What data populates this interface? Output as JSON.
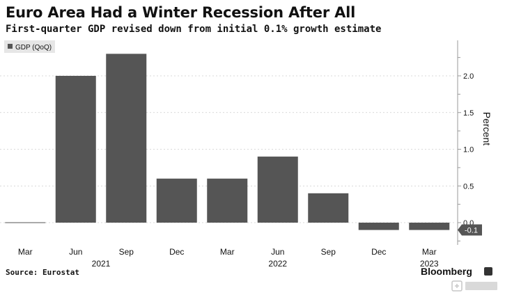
{
  "title": "Euro Area Had a Winter Recession After All",
  "subtitle": "First-quarter GDP revised down from initial 0.1% growth estimate",
  "source": "Source: Eurostat",
  "brand": "Bloomberg",
  "colors": {
    "bar": "#555555",
    "axis": "#999999",
    "grid": "#cccccc",
    "text": "#111111"
  },
  "chart_data": {
    "type": "bar",
    "categories": [
      "Mar",
      "Jun",
      "Sep",
      "Dec",
      "Mar",
      "Jun",
      "Sep",
      "Dec",
      "Mar"
    ],
    "year_labels": [
      {
        "label": "2021",
        "category_index": 1.5
      },
      {
        "label": "2022",
        "category_index": 5.0
      },
      {
        "label": "2023",
        "category_index": 8.0
      }
    ],
    "series": [
      {
        "name": "GDP (QoQ)",
        "values": [
          0.0,
          2.0,
          2.3,
          0.6,
          0.6,
          0.9,
          0.4,
          -0.1,
          -0.1
        ]
      }
    ],
    "yticks": [
      "2.0",
      "1.5",
      "1.0",
      "0.5",
      "0.0"
    ],
    "ytick_values": [
      2.0,
      1.5,
      1.0,
      0.5,
      0.0
    ],
    "ylabel": "Percent",
    "last_value_label": "-0.1",
    "ylim": [
      -0.3,
      2.5
    ],
    "grid": true,
    "legend": "top-left",
    "y_axis_side": "right"
  }
}
